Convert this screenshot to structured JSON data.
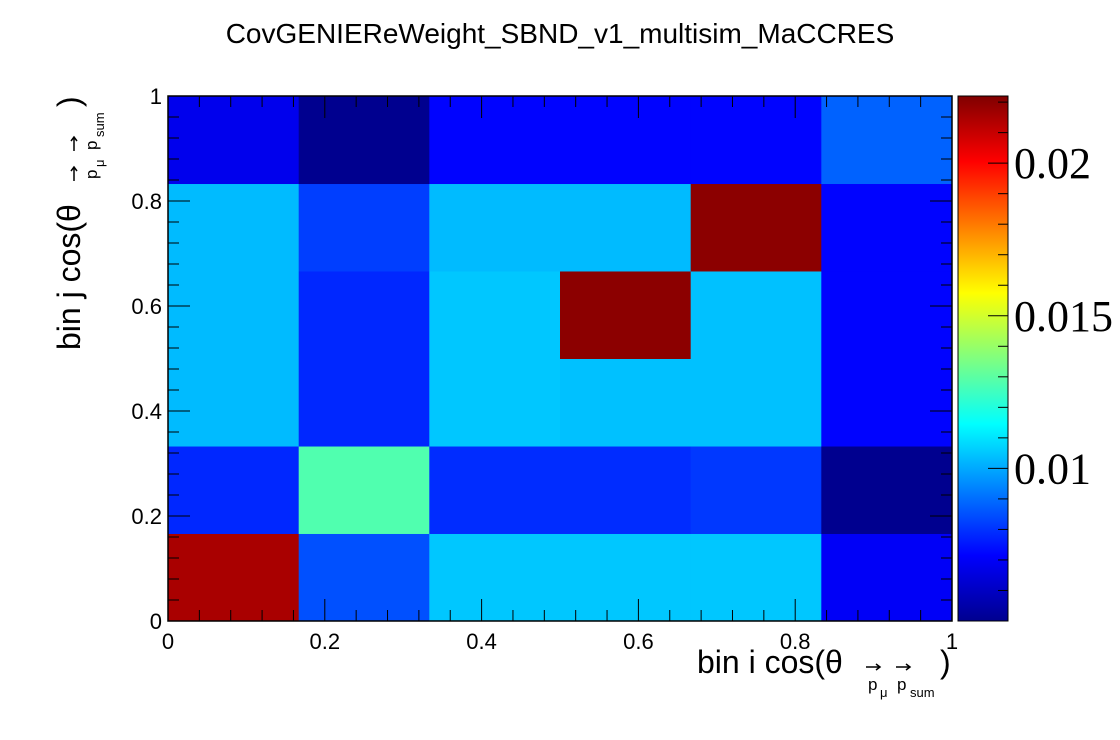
{
  "title": "CovGENIEReWeight_SBND_v1_multisim_MaCCRES",
  "chart_data": {
    "type": "heatmap",
    "title": "CovGENIEReWeight_SBND_v1_multisim_MaCCRES",
    "xlabel": "bin i cos(θ p⃗μ,p⃗sum)",
    "ylabel": "bin j cos(θ p⃗μ,p⃗sum)",
    "xlabel_main": "bin i cos(θ",
    "xlabel_close": ")",
    "ylabel_main": "bin j cos(θ",
    "ylabel_close": ")",
    "label_subscript_1": "p",
    "label_subscript_1b": "μ",
    "label_subscript_2": "p",
    "label_subscript_2b": "sum",
    "x_bin_edges": [
      0,
      0.1667,
      0.3333,
      0.5,
      0.6667,
      0.8333,
      1
    ],
    "y_bin_edges": [
      0,
      0.1667,
      0.3333,
      0.5,
      0.6667,
      0.8333,
      1
    ],
    "xlim": [
      0,
      1
    ],
    "ylim": [
      0,
      1
    ],
    "x_ticks": [
      0,
      0.2,
      0.4,
      0.6,
      0.8,
      1
    ],
    "x_tick_labels": [
      "0",
      "0.2",
      "0.4",
      "0.6",
      "0.8",
      "1"
    ],
    "y_ticks": [
      0,
      0.2,
      0.4,
      0.6,
      0.8,
      1
    ],
    "y_tick_labels": [
      "0",
      "0.2",
      "0.4",
      "0.6",
      "0.8",
      "1"
    ],
    "values_rows_bottom_to_top": [
      [
        0.0215,
        0.0085,
        0.0105,
        0.0105,
        0.0105,
        0.007
      ],
      [
        0.0078,
        0.0128,
        0.0079,
        0.0079,
        0.0081,
        0.005
      ],
      [
        0.0103,
        0.0078,
        0.0105,
        0.0104,
        0.0104,
        0.0072
      ],
      [
        0.0103,
        0.0078,
        0.0105,
        0.022,
        0.0104,
        0.0072
      ],
      [
        0.0103,
        0.0082,
        0.0103,
        0.0103,
        0.022,
        0.0072
      ],
      [
        0.0068,
        0.005,
        0.0072,
        0.0072,
        0.0072,
        0.0088
      ]
    ],
    "zlim": [
      0.005,
      0.0222
    ],
    "colorbar_ticks": [
      0.01,
      0.015,
      0.02
    ],
    "colorbar_tick_labels": [
      "0.01",
      "0.015",
      "0.02"
    ],
    "colormap": "jet",
    "grid": false
  }
}
